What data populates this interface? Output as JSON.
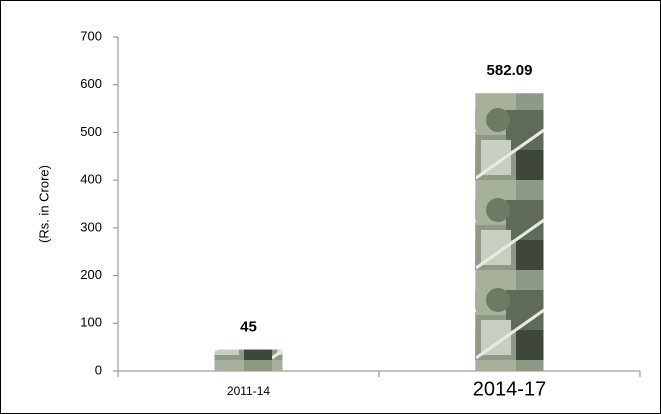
{
  "chart_data": {
    "type": "bar",
    "y_label": "(Rs. in Crore)",
    "categories": [
      "2011-14",
      "2014-17"
    ],
    "values": [
      45,
      582.09
    ],
    "ylim": [
      0,
      700
    ],
    "yticks": [
      0,
      100,
      200,
      300,
      400,
      500,
      600,
      700
    ],
    "grid": false
  }
}
